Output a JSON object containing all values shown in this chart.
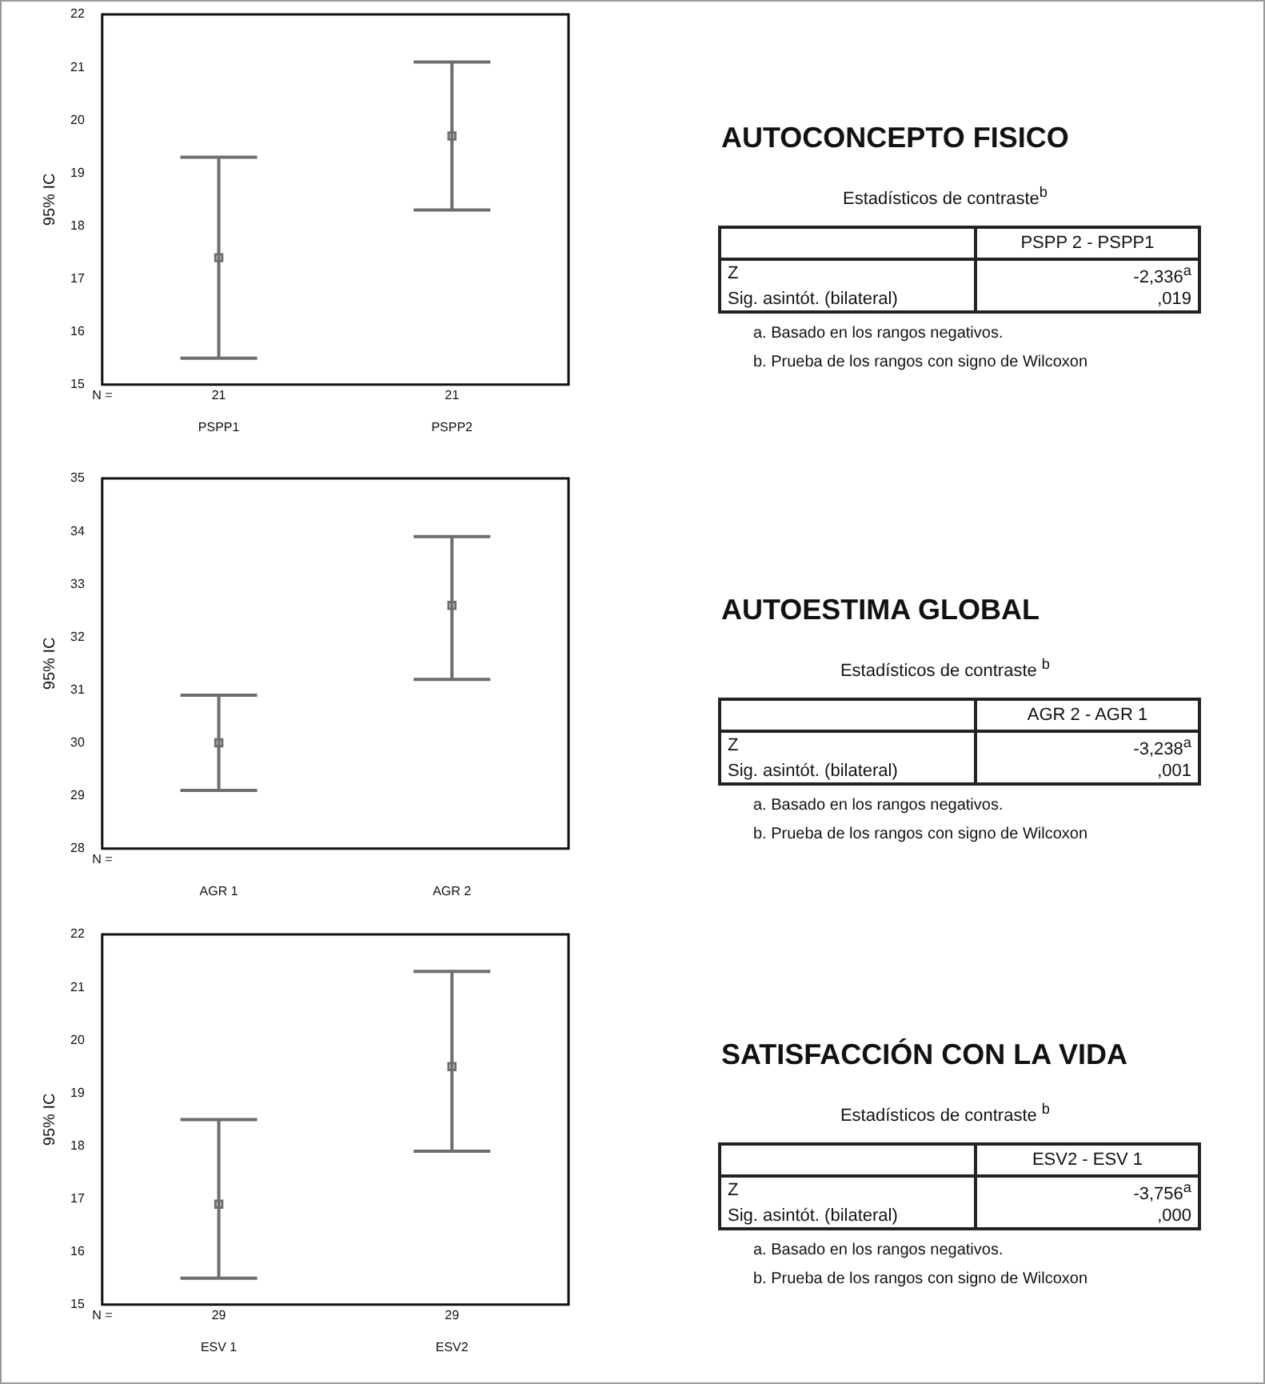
{
  "chart_data": [
    {
      "type": "scatter",
      "ylabel": "95% IC",
      "categories": [
        "PSPP1",
        "PSPP2"
      ],
      "values": [
        17.4,
        19.7
      ],
      "errors": [
        [
          15.5,
          19.3
        ],
        [
          18.3,
          21.1
        ]
      ],
      "color": "#6e6e6e",
      "marker": "square",
      "ylim": [
        15,
        22
      ],
      "yticks": [
        15,
        16,
        17,
        18,
        19,
        20,
        21,
        22
      ],
      "annotations": [
        "N =",
        "21",
        "21"
      ]
    },
    {
      "type": "other",
      "title": "AUTOCONCEPTO FISICO",
      "subtitle": "Estadísticos de contraste$^{b}$",
      "annotations": [
        "PSPP 2 - PSPP1",
        "Z",
        "-2,336$^{a}$",
        "Sig. asintót. (bilateral)",
        ",019",
        "a. Basado en los rangos negativos.",
        "b. Prueba de los rangos con signo de Wilcoxon"
      ]
    },
    {
      "type": "scatter",
      "ylabel": "95% IC",
      "categories": [
        "AGR 1",
        "AGR 2"
      ],
      "values": [
        30.0,
        32.6
      ],
      "errors": [
        [
          29.1,
          30.9
        ],
        [
          31.2,
          33.9
        ]
      ],
      "color": "#6e6e6e",
      "marker": "square",
      "ylim": [
        28,
        35
      ],
      "yticks": [
        28,
        29,
        30,
        31,
        32,
        33,
        34,
        35
      ],
      "annotations": [
        "N ="
      ]
    },
    {
      "type": "other",
      "title": "AUTOESTIMA GLOBAL",
      "subtitle": "Estadísticos de contraste $^{b}$",
      "annotations": [
        "AGR 2 - AGR 1",
        "Z",
        "-3,238$^{a}$",
        "Sig. asintót. (bilateral)",
        ",001",
        "a. Basado en los rangos negativos.",
        "b. Prueba de los rangos con signo de Wilcoxon"
      ]
    },
    {
      "type": "scatter",
      "ylabel": "95% IC",
      "categories": [
        "ESV 1",
        "ESV2"
      ],
      "values": [
        16.9,
        19.5
      ],
      "errors": [
        [
          15.5,
          18.5
        ],
        [
          17.9,
          21.3
        ]
      ],
      "color": "#6e6e6e",
      "marker": "square",
      "ylim": [
        15,
        22
      ],
      "yticks": [
        15,
        16,
        17,
        18,
        19,
        20,
        21,
        22
      ],
      "annotations": [
        "N =",
        "29",
        "29"
      ]
    },
    {
      "type": "other",
      "title": "SATISFACCIÓN CON LA VIDA",
      "subtitle": "Estadísticos de contraste $^{b}$",
      "annotations": [
        "ESV2 - ESV 1",
        "Z",
        "-3,756$^{a}$",
        "Sig. asintót. (bilateral)",
        ",000",
        "a. Basado en los rangos negativos.",
        "b. Prueba de los rangos con signo de Wilcoxon"
      ]
    }
  ]
}
